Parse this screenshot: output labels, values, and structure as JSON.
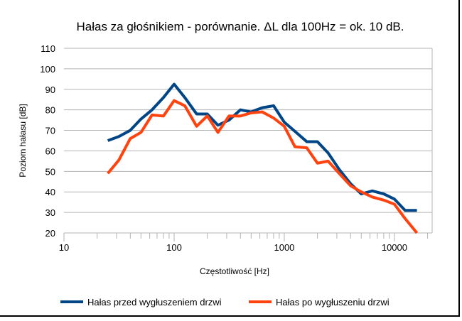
{
  "chart_data": {
    "type": "line",
    "title": "Hałas za głośnikiem - porównanie. ΔL dla 100Hz = ok. 10 dB.",
    "xlabel": "Częstotliwość [Hz]",
    "ylabel": "Poziom hałasu [dB]",
    "xscale": "log",
    "xlim": [
      10,
      22000
    ],
    "ylim": [
      20,
      110
    ],
    "yticks": [
      "20",
      "30",
      "40",
      "50",
      "60",
      "70",
      "80",
      "90",
      "100",
      "110"
    ],
    "xticks": [
      "10",
      "100",
      "1000",
      "10000"
    ],
    "grid": "horizontal",
    "legend": "bottom",
    "x": [
      25,
      31.5,
      40,
      50,
      63,
      80,
      100,
      125,
      160,
      200,
      250,
      315,
      400,
      500,
      630,
      800,
      1000,
      1250,
      1600,
      2000,
      2500,
      3150,
      4000,
      5000,
      6300,
      8000,
      10000,
      12500,
      16000
    ],
    "series": [
      {
        "name": "Hałas przed wygłuszeniem drzwi",
        "color": "#004586",
        "values": [
          65,
          67,
          70,
          75.5,
          80,
          86,
          92.5,
          86,
          78,
          78,
          72.5,
          75,
          80,
          79,
          81,
          82,
          74,
          69.5,
          64.5,
          64.5,
          59,
          51,
          44,
          39,
          40.5,
          39,
          36.5,
          31,
          31
        ]
      },
      {
        "name": "Hałas po wygłuszeniu drzwi",
        "color": "#ff420e",
        "values": [
          49,
          55.5,
          66,
          69,
          77.5,
          77,
          84.5,
          82,
          72,
          77,
          69,
          77,
          77,
          78.5,
          79,
          76,
          72,
          62,
          61.5,
          54,
          55,
          49,
          43,
          40,
          37.5,
          36,
          34,
          27,
          20
        ]
      }
    ]
  }
}
